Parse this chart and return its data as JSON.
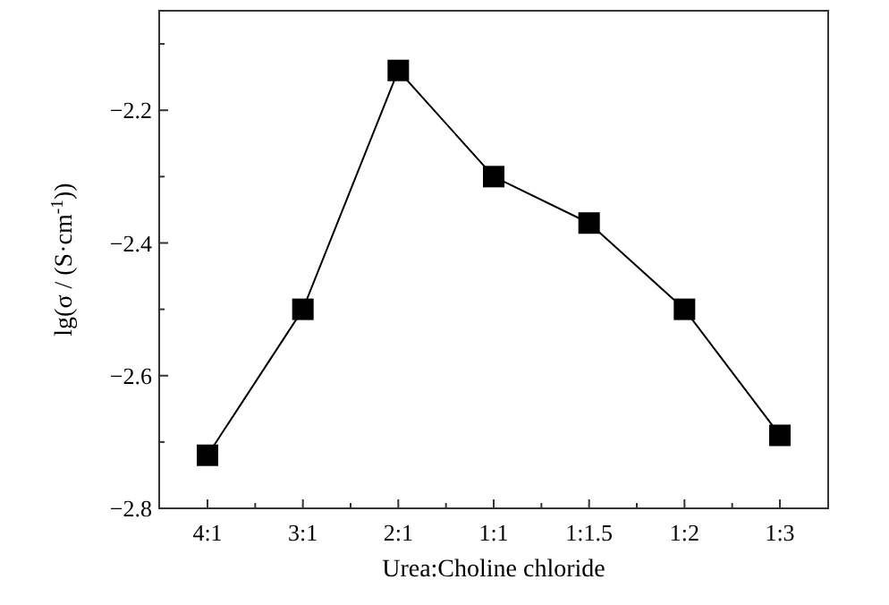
{
  "chart_data": {
    "type": "line",
    "xlabel": "Urea:Choline chloride",
    "ylabel": "lg(σ / (S·cm$^{-1}$))",
    "categories": [
      "4:1",
      "3:1",
      "2:1",
      "1:1",
      "1:1.5",
      "1:2",
      "1:3"
    ],
    "series": [
      {
        "color": "#000000",
        "values": [
          -2.72,
          -2.5,
          -2.14,
          -2.3,
          -2.37,
          -2.5,
          -2.69
        ]
      }
    ],
    "ylim": [
      -2.8,
      -2.05
    ],
    "yticks": [
      -2.8,
      {
        "value": -2.7,
        "label": null
      },
      -2.6,
      {
        "value": -2.5,
        "label": null
      },
      -2.4,
      {
        "value": -2.3,
        "label": null
      },
      -2.2,
      {
        "value": -2.1,
        "label": null
      }
    ],
    "marker": "square",
    "line_style": "solid"
  }
}
